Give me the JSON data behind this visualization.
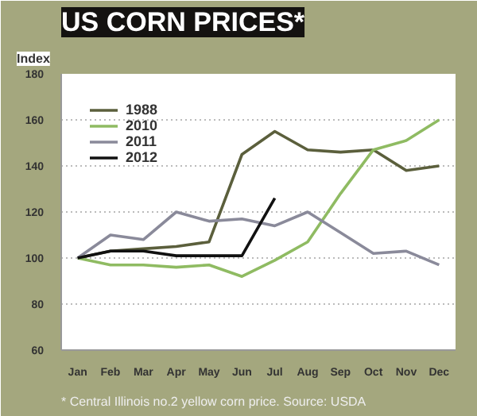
{
  "chart_data": {
    "type": "line",
    "title": "US CORN PRICES*",
    "ylabel": "Index",
    "categories": [
      "Jan",
      "Feb",
      "Mar",
      "Apr",
      "May",
      "Jun",
      "Jul",
      "Aug",
      "Sep",
      "Oct",
      "Nov",
      "Dec"
    ],
    "series": [
      {
        "name": "1988",
        "color": "#5b5f3c",
        "values": [
          100,
          103,
          104,
          105,
          107,
          145,
          155,
          147,
          146,
          147,
          138,
          140
        ]
      },
      {
        "name": "2010",
        "color": "#8fbb62",
        "values": [
          100,
          97,
          97,
          96,
          97,
          92,
          99,
          107,
          128,
          147,
          151,
          160
        ]
      },
      {
        "name": "2011",
        "color": "#8a8a9a",
        "values": [
          100,
          110,
          108,
          120,
          116,
          117,
          114,
          120,
          111,
          102,
          103,
          97
        ]
      },
      {
        "name": "2012",
        "color": "#111111",
        "values": [
          100,
          103,
          103,
          101,
          101,
          101,
          126,
          null,
          null,
          null,
          null,
          null
        ]
      }
    ],
    "ylim": [
      60,
      180
    ],
    "yticks": [
      60,
      80,
      100,
      120,
      140,
      160,
      180
    ],
    "grid": "y",
    "legend": "top left",
    "annotations": [
      "* Central Illinois no.2 yellow corn price. Source: USDA"
    ]
  }
}
